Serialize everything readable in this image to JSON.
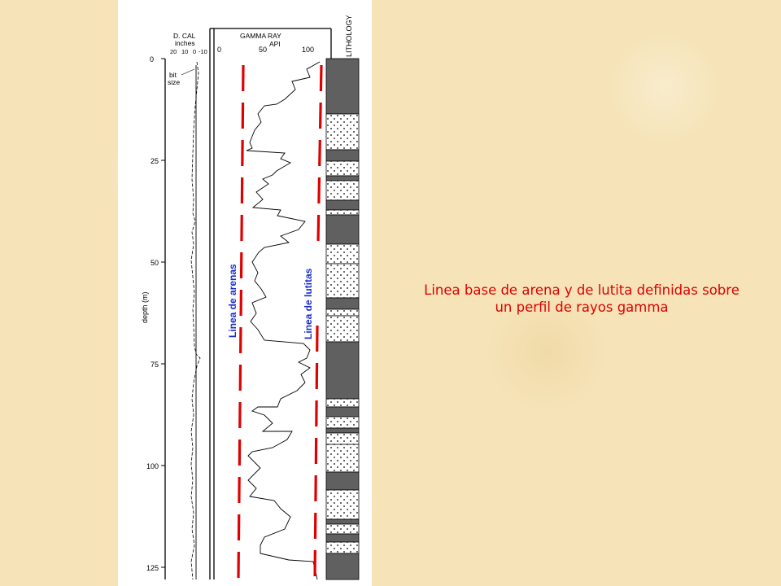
{
  "caption": {
    "line1": "Linea base de arena y de lutita definidas sobre",
    "line2": "un perfil de rayos gamma"
  },
  "track_caliper": {
    "title": "D. CAL",
    "units": "inches",
    "scale_labels": [
      "20",
      "10",
      "0",
      "-10"
    ],
    "bit_size_label_1": "bit",
    "bit_size_label_2": "size"
  },
  "track_gamma": {
    "title": "GAMMA RAY",
    "units": "API",
    "scale_labels": [
      "0",
      "50",
      "100"
    ]
  },
  "track_lithology": {
    "title": "LITHOLOGY"
  },
  "depth_axis": {
    "label": "depth (m)",
    "ticks": [
      "0",
      "25",
      "50",
      "75",
      "100",
      "125"
    ]
  },
  "baselines": {
    "sand": "Linea de arenas",
    "shale": "Linea de lutitas",
    "line_color": "#e00000",
    "label_color": "#1a2bd0"
  },
  "colors": {
    "caption": "#e00000",
    "shale_fill": "#606060"
  }
}
